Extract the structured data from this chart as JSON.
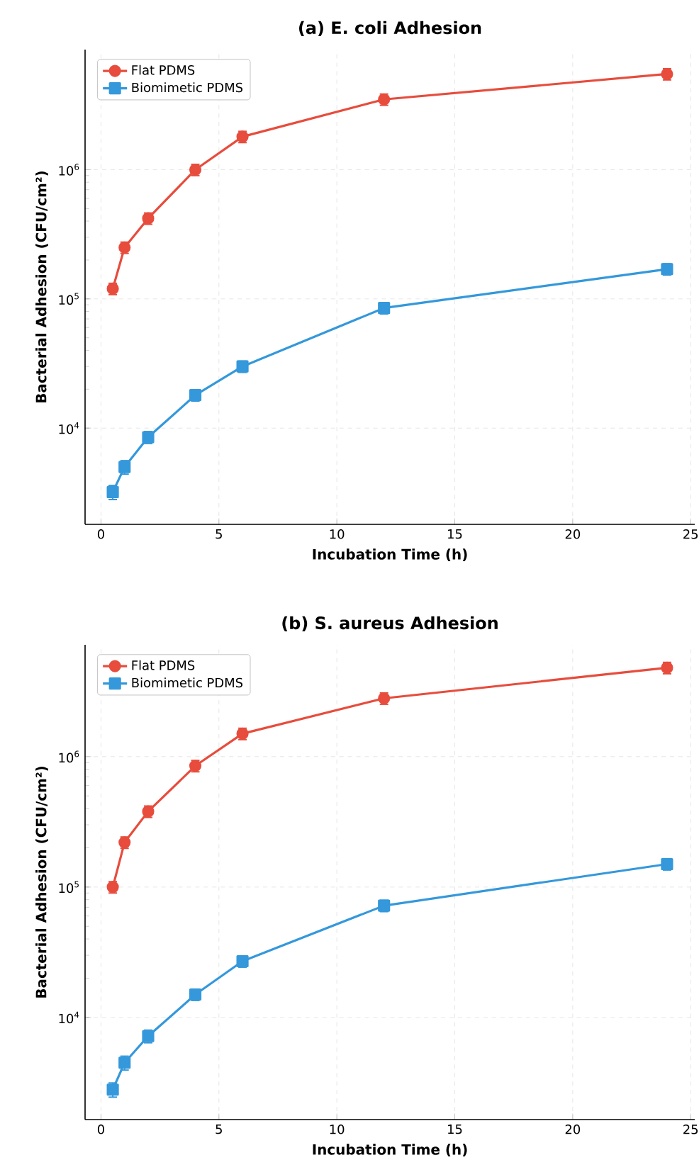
{
  "chart_data": [
    {
      "type": "line",
      "title": "(a) E. coli Adhesion",
      "xlabel": "Incubation Time (h)",
      "ylabel": "Bacterial Adhesion (CFU/cm²)",
      "log": "y",
      "grid": true,
      "legend": "top left",
      "xlim": [
        -0.675,
        25.175
      ],
      "ylim": [
        1800,
        8500000
      ],
      "xticks": [
        0,
        5,
        10,
        15,
        20,
        25
      ],
      "yticks": [
        {
          "value": 10000,
          "label": "10$^{4}$"
        },
        {
          "value": 100000,
          "label": "10$^{5}$"
        },
        {
          "value": 1000000,
          "label": "10$^{6}$"
        }
      ],
      "x": [
        0.5,
        1,
        2,
        4,
        6,
        12,
        24
      ],
      "series": [
        {
          "name": "Flat PDMS",
          "color": "#e74c3c",
          "marker": "circle",
          "values": [
            120000,
            250000,
            420000,
            1000000,
            1800000,
            3500000,
            5500000
          ],
          "errors": [
            12000,
            25000,
            42000,
            100000,
            180000,
            350000,
            550000
          ]
        },
        {
          "name": "Biomimetic PDMS",
          "color": "#3498db",
          "marker": "square",
          "values": [
            3200,
            5000,
            8500,
            18000,
            30000,
            85000,
            170000
          ],
          "errors": [
            400,
            600,
            900,
            1800,
            3000,
            8500,
            17000
          ]
        }
      ]
    },
    {
      "type": "line",
      "title": "(b) S. aureus Adhesion",
      "xlabel": "Incubation Time (h)",
      "ylabel": "Bacterial Adhesion (CFU/cm²)",
      "log": "y",
      "grid": true,
      "legend": "top left",
      "xlim": [
        -0.675,
        25.175
      ],
      "ylim": [
        1650,
        7200000
      ],
      "xticks": [
        0,
        5,
        10,
        15,
        20,
        25
      ],
      "yticks": [
        {
          "value": 10000,
          "label": "10$^{4}$"
        },
        {
          "value": 100000,
          "label": "10$^{5}$"
        },
        {
          "value": 1000000,
          "label": "10$^{6}$"
        }
      ],
      "x": [
        0.5,
        1,
        2,
        4,
        6,
        12,
        24
      ],
      "series": [
        {
          "name": "Flat PDMS",
          "color": "#e74c3c",
          "marker": "circle",
          "values": [
            100000,
            220000,
            380000,
            850000,
            1500000,
            2800000,
            4800000
          ],
          "errors": [
            10000,
            22000,
            38000,
            85000,
            150000,
            280000,
            480000
          ]
        },
        {
          "name": "Biomimetic PDMS",
          "color": "#3498db",
          "marker": "square",
          "values": [
            2800,
            4500,
            7200,
            15000,
            27000,
            72000,
            150000
          ],
          "errors": [
            350,
            550,
            800,
            1500,
            2700,
            7200,
            15000
          ]
        }
      ]
    }
  ]
}
